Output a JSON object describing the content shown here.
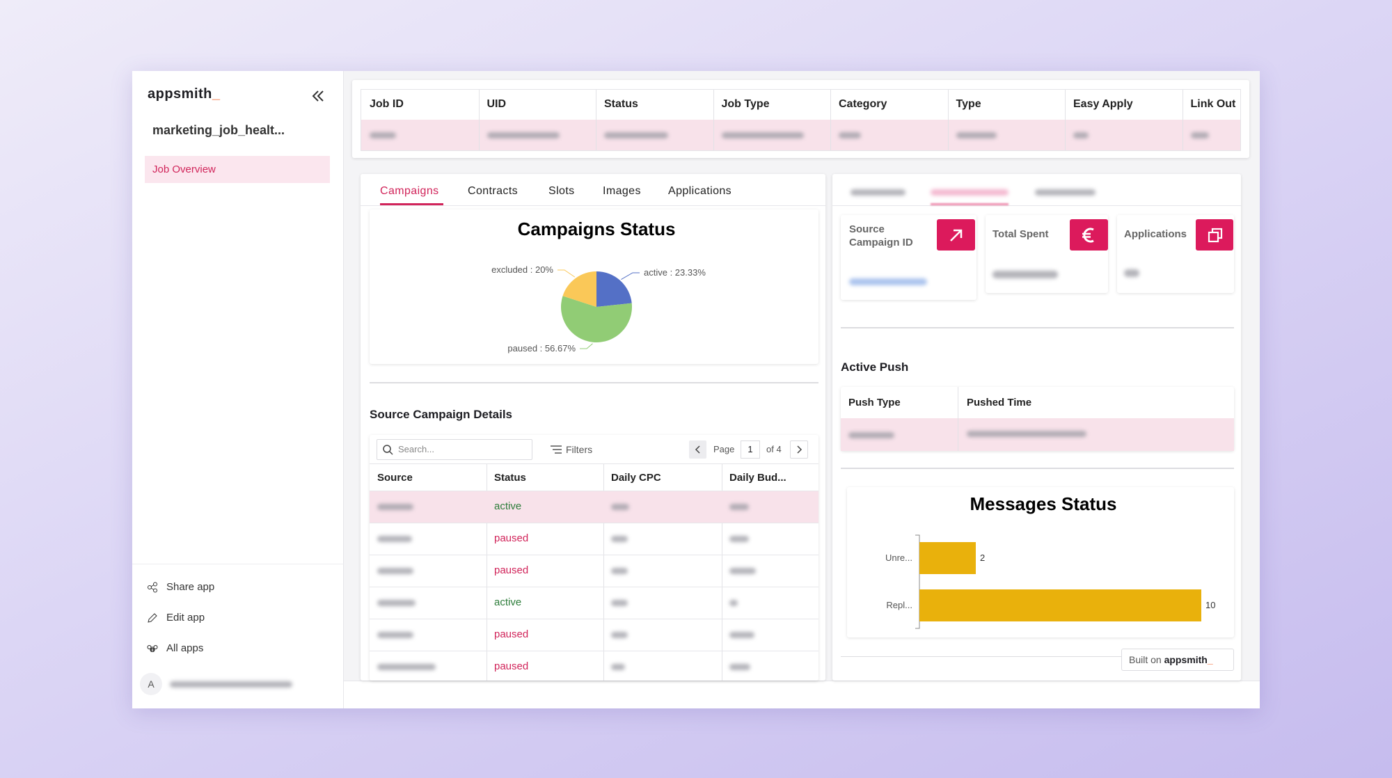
{
  "sidebar": {
    "brand": "appsmith",
    "brand_cursor": "_",
    "app_name": "marketing_job_healt...",
    "nav": [
      "Job Overview"
    ],
    "actions": [
      "Share app",
      "Edit app",
      "All apps"
    ],
    "avatar": "A"
  },
  "job_table": {
    "columns": [
      "Job ID",
      "UID",
      "Status",
      "Job Type",
      "Category",
      "Type",
      "Easy Apply",
      "Link Out"
    ]
  },
  "tabs": [
    "Campaigns",
    "Contracts",
    "Slots",
    "Images",
    "Applications"
  ],
  "source_campaign_details": {
    "title": "Source Campaign Details",
    "search_placeholder": "Search...",
    "filters": "Filters",
    "page_label": "Page",
    "page": 1,
    "page_of": "of 4",
    "columns": [
      "Source",
      "Status",
      "Daily CPC",
      "Daily Bud..."
    ],
    "rows": [
      {
        "status": "active"
      },
      {
        "status": "paused"
      },
      {
        "status": "paused"
      },
      {
        "status": "active"
      },
      {
        "status": "paused"
      },
      {
        "status": "paused"
      }
    ]
  },
  "cards": [
    {
      "label": "Source Campaign ID"
    },
    {
      "label": "Total Spent"
    },
    {
      "label": "Applications"
    }
  ],
  "active_push": {
    "title": "Active Push",
    "columns": [
      "Push Type",
      "Pushed Time"
    ]
  },
  "footer_badge": {
    "text": "Built on",
    "brand": "appsmith",
    "cursor": "_"
  },
  "chart_data": [
    {
      "type": "pie",
      "title": "Campaigns Status",
      "values": [
        23.33,
        56.67,
        20
      ],
      "value_labels": [
        "active : 23.33%",
        "paused : 56.67%",
        "excluded : 20%"
      ],
      "colors": [
        "#5470c6",
        "#91cc75",
        "#fac858"
      ]
    },
    {
      "type": "hbar",
      "title": "Messages Status",
      "categories": [
        "Unre...",
        "Repl..."
      ],
      "values": [
        2,
        10
      ],
      "color": "#e9b10c",
      "xlim": [
        0,
        10
      ]
    }
  ]
}
